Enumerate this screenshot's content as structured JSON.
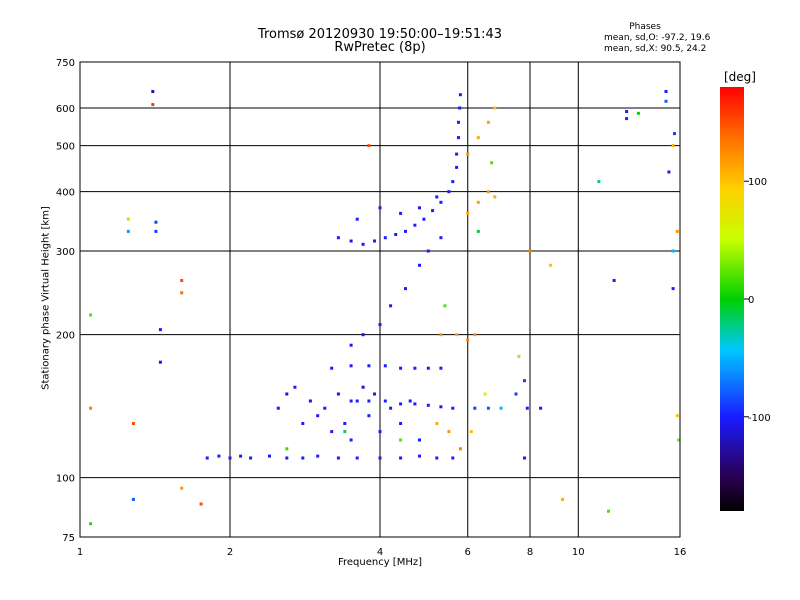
{
  "chart_data": {
    "type": "scatter",
    "title": "Tromsø 20120930 19:50:00–19:51:43",
    "subtitle": "RwPretec (8p)",
    "xlabel": "Frequency [MHz]",
    "ylabel": "Stationary phase Virtual Height [km]",
    "x_scale": "log",
    "y_scale": "log",
    "xlim": [
      1,
      16
    ],
    "ylim": [
      75,
      750
    ],
    "x_ticks": [
      1,
      2,
      4,
      6,
      8,
      10,
      16
    ],
    "x_tick_labels": [
      "1",
      "2",
      "4",
      "6",
      "8",
      "10",
      "16"
    ],
    "y_ticks": [
      75,
      100,
      200,
      300,
      400,
      500,
      600,
      750
    ],
    "y_tick_labels": [
      "75",
      "100",
      "200",
      "300",
      "400",
      "500",
      "600",
      "750"
    ],
    "grid": true,
    "phases_title": "Phases",
    "phase_stats": [
      "mean, sd,O: -97.2, 19.6",
      "mean, sd,X:  90.5, 24.2"
    ],
    "colorbar": {
      "label": "[deg]",
      "range": [
        -180,
        180
      ],
      "ticks": [
        100,
        0,
        -100
      ],
      "tick_labels": [
        "100",
        "0",
        "-100"
      ]
    },
    "series": [
      {
        "points": [
          [
            1.8,
            110,
            -100
          ],
          [
            1.9,
            111,
            -100
          ],
          [
            2.0,
            110,
            -100
          ],
          [
            2.1,
            111,
            -100
          ],
          [
            2.2,
            110,
            -100
          ],
          [
            2.4,
            111,
            -100
          ],
          [
            2.6,
            110,
            -100
          ],
          [
            2.8,
            110,
            -100
          ],
          [
            3.0,
            111,
            -100
          ],
          [
            3.3,
            110,
            -100
          ],
          [
            3.6,
            110,
            -100
          ],
          [
            4.0,
            110,
            -100
          ],
          [
            4.4,
            110,
            -100
          ],
          [
            4.8,
            111,
            -100
          ],
          [
            5.2,
            110,
            -100
          ],
          [
            5.6,
            110,
            -100
          ],
          [
            2.5,
            140,
            -100
          ],
          [
            2.6,
            150,
            -110
          ],
          [
            2.7,
            155,
            -100
          ],
          [
            2.8,
            130,
            -100
          ],
          [
            2.9,
            145,
            -110
          ],
          [
            3.0,
            135,
            -100
          ],
          [
            3.1,
            140,
            -100
          ],
          [
            3.2,
            125,
            -100
          ],
          [
            3.3,
            150,
            -110
          ],
          [
            3.4,
            130,
            -100
          ],
          [
            3.5,
            120,
            -100
          ],
          [
            3.6,
            145,
            -100
          ],
          [
            3.7,
            155,
            -110
          ],
          [
            3.8,
            135,
            -100
          ],
          [
            3.9,
            150,
            -100
          ],
          [
            4.0,
            125,
            -100
          ],
          [
            4.2,
            140,
            -100
          ],
          [
            4.4,
            130,
            -100
          ],
          [
            4.6,
            145,
            -100
          ],
          [
            4.8,
            120,
            -100
          ],
          [
            3.5,
            145,
            -100
          ],
          [
            3.8,
            145,
            -100
          ],
          [
            4.1,
            145,
            -100
          ],
          [
            4.4,
            143,
            -100
          ],
          [
            4.7,
            143,
            -100
          ],
          [
            5.0,
            142,
            -100
          ],
          [
            5.3,
            141,
            -100
          ],
          [
            5.6,
            140,
            -100
          ],
          [
            3.2,
            170,
            -100
          ],
          [
            3.5,
            172,
            -100
          ],
          [
            3.8,
            172,
            -100
          ],
          [
            4.1,
            172,
            -100
          ],
          [
            4.4,
            170,
            -100
          ],
          [
            4.7,
            170,
            -100
          ],
          [
            5.0,
            170,
            -100
          ],
          [
            5.3,
            170,
            -100
          ],
          [
            3.5,
            190,
            -100
          ],
          [
            3.7,
            200,
            -110
          ],
          [
            4.0,
            210,
            -100
          ],
          [
            4.2,
            230,
            -100
          ],
          [
            4.5,
            250,
            -100
          ],
          [
            4.8,
            280,
            -100
          ],
          [
            5.0,
            300,
            -100
          ],
          [
            5.3,
            320,
            -100
          ],
          [
            3.3,
            320,
            -100
          ],
          [
            3.5,
            315,
            -110
          ],
          [
            3.7,
            310,
            -100
          ],
          [
            3.9,
            315,
            -100
          ],
          [
            4.1,
            320,
            -100
          ],
          [
            4.3,
            325,
            -100
          ],
          [
            4.5,
            330,
            -100
          ],
          [
            4.7,
            340,
            -100
          ],
          [
            4.9,
            350,
            -100
          ],
          [
            5.1,
            365,
            -100
          ],
          [
            5.3,
            380,
            -100
          ],
          [
            5.5,
            400,
            -100
          ],
          [
            5.6,
            420,
            -100
          ],
          [
            5.7,
            450,
            -100
          ],
          [
            5.7,
            480,
            -100
          ],
          [
            5.75,
            520,
            -100
          ],
          [
            5.75,
            560,
            -100
          ],
          [
            5.78,
            600,
            -100
          ],
          [
            5.8,
            640,
            -100
          ],
          [
            3.6,
            350,
            -100
          ],
          [
            4.0,
            370,
            -100
          ],
          [
            4.4,
            360,
            -100
          ],
          [
            4.8,
            370,
            -100
          ],
          [
            5.2,
            390,
            -100
          ],
          [
            2.6,
            115,
            15
          ],
          [
            3.4,
            125,
            -20
          ],
          [
            4.4,
            120,
            20
          ],
          [
            5.2,
            130,
            110
          ],
          [
            5.5,
            125,
            120
          ],
          [
            5.8,
            115,
            130
          ],
          [
            6.1,
            125,
            105
          ],
          [
            5.3,
            200,
            120
          ],
          [
            5.7,
            200,
            110
          ],
          [
            6.0,
            195,
            130
          ],
          [
            6.2,
            200,
            120
          ],
          [
            5.4,
            230,
            20
          ],
          [
            6.3,
            330,
            -10
          ],
          [
            6.0,
            360,
            110
          ],
          [
            6.3,
            380,
            115
          ],
          [
            6.6,
            400,
            120
          ],
          [
            6.8,
            390,
            110
          ],
          [
            6.0,
            480,
            120
          ],
          [
            6.3,
            520,
            110
          ],
          [
            6.6,
            560,
            115
          ],
          [
            6.8,
            600,
            100
          ],
          [
            6.7,
            460,
            20
          ],
          [
            6.5,
            150,
            70
          ],
          [
            6.2,
            140,
            -90
          ],
          [
            6.6,
            140,
            -80
          ],
          [
            7.0,
            140,
            -50
          ],
          [
            7.5,
            150,
            -90
          ],
          [
            7.8,
            160,
            -90
          ],
          [
            7.9,
            140,
            -100
          ],
          [
            8.4,
            140,
            -100
          ],
          [
            8.0,
            300,
            130
          ],
          [
            7.6,
            180,
            40
          ],
          [
            8.8,
            280,
            100
          ],
          [
            7.8,
            110,
            -100
          ],
          [
            1.05,
            220,
            20
          ],
          [
            1.05,
            140,
            130
          ],
          [
            1.05,
            80,
            10
          ],
          [
            1.25,
            350,
            40
          ],
          [
            1.25,
            330,
            -60
          ],
          [
            1.28,
            130,
            150
          ],
          [
            1.28,
            90,
            -80
          ],
          [
            1.4,
            650,
            -120
          ],
          [
            1.4,
            610,
            160
          ],
          [
            1.42,
            345,
            -90
          ],
          [
            1.42,
            330,
            -90
          ],
          [
            1.45,
            205,
            -100
          ],
          [
            1.45,
            175,
            -110
          ],
          [
            1.6,
            260,
            150
          ],
          [
            1.6,
            245,
            140
          ],
          [
            1.6,
            95,
            120
          ],
          [
            1.75,
            88,
            150
          ],
          [
            3.8,
            500,
            150
          ],
          [
            9.3,
            90,
            110
          ],
          [
            11.0,
            420,
            -20
          ],
          [
            11.5,
            85,
            20
          ],
          [
            11.8,
            260,
            -100
          ],
          [
            12.5,
            590,
            -100
          ],
          [
            12.5,
            570,
            -100
          ],
          [
            13.2,
            585,
            0
          ],
          [
            15.0,
            650,
            -100
          ],
          [
            15.0,
            620,
            -80
          ],
          [
            15.2,
            440,
            -100
          ],
          [
            15.5,
            300,
            -50
          ],
          [
            15.5,
            250,
            -100
          ],
          [
            15.5,
            500,
            110
          ],
          [
            15.6,
            530,
            -90
          ],
          [
            15.8,
            330,
            120
          ],
          [
            15.8,
            135,
            100
          ],
          [
            15.9,
            120,
            30
          ]
        ]
      }
    ]
  }
}
